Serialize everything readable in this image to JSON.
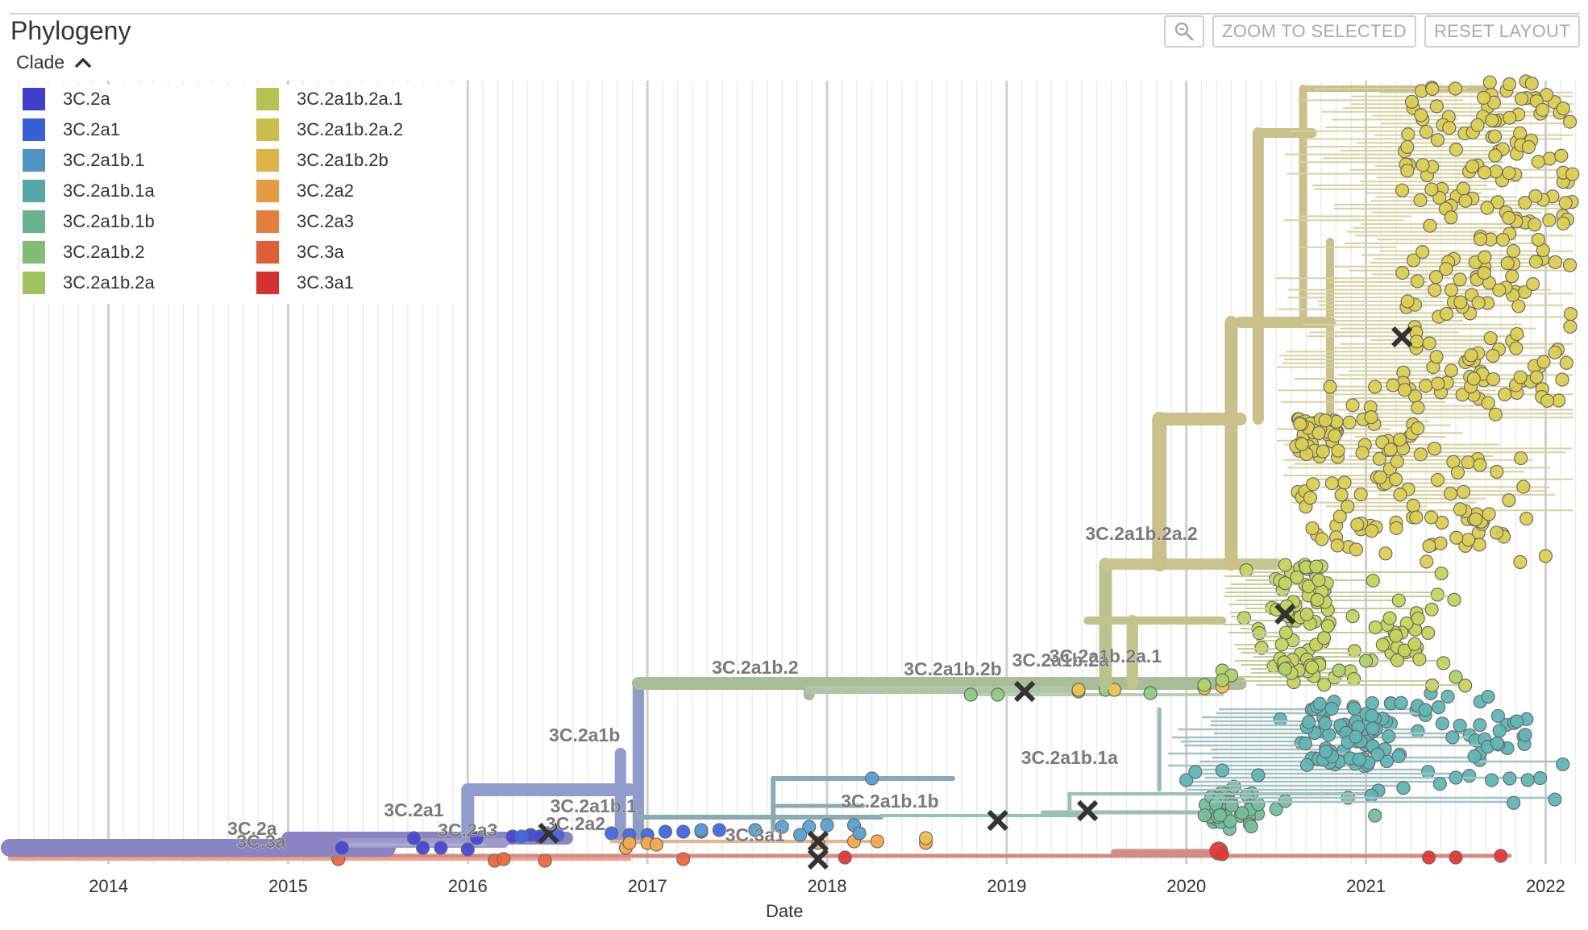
{
  "panel": {
    "title": "Phylogeny"
  },
  "toolbar": {
    "zoom_icon": "magnifier-icon",
    "zoom_to_selected": "ZOOM TO SELECTED",
    "reset_layout": "RESET LAYOUT"
  },
  "legend": {
    "toggle_label": "Clade",
    "toggle_icon": "chevron-up-icon",
    "items": [
      {
        "label": "3C.2a",
        "color": "#4444dd"
      },
      {
        "label": "3C.2a1",
        "color": "#3f66e6"
      },
      {
        "label": "3C.2a1b.1",
        "color": "#56a0d3"
      },
      {
        "label": "3C.2a1b.1a",
        "color": "#5fb6b6"
      },
      {
        "label": "3C.2a1b.1b",
        "color": "#72c19b"
      },
      {
        "label": "3C.2a1b.2",
        "color": "#8ccd7f"
      },
      {
        "label": "3C.2a1b.2a",
        "color": "#aed467"
      },
      {
        "label": "3C.2a1b.2a.1",
        "color": "#c6d459"
      },
      {
        "label": "3C.2a1b.2a.2",
        "color": "#dccf4f"
      },
      {
        "label": "3C.2a1b.2b",
        "color": "#f1c24a"
      },
      {
        "label": "3C.2a2",
        "color": "#f8a848"
      },
      {
        "label": "3C.2a3",
        "color": "#f58a40"
      },
      {
        "label": "3C.3a",
        "color": "#f1663a"
      },
      {
        "label": "3C.3a1",
        "color": "#e93532"
      }
    ]
  },
  "chart_data": {
    "type": "scatter",
    "title": "",
    "xlabel": "Date",
    "ylabel": "",
    "x_ticks": [
      "2014",
      "2015",
      "2016",
      "2017",
      "2018",
      "2019",
      "2020",
      "2021",
      "2022"
    ],
    "xlim": [
      2013.45,
      2022.2
    ],
    "grid": "vertical",
    "branch_labels": [
      {
        "label": "3C.2a",
        "x": 2014.8
      },
      {
        "label": "3C.3a",
        "x": 2014.85
      },
      {
        "label": "3C.2a1",
        "x": 2015.7
      },
      {
        "label": "3C.2a3",
        "x": 2016.0
      },
      {
        "label": "3C.2a2",
        "x": 2016.6
      },
      {
        "label": "3C.2a1b.1",
        "x": 2016.7
      },
      {
        "label": "3C.2a1b",
        "x": 2016.65
      },
      {
        "label": "3C.3a1",
        "x": 2017.6
      },
      {
        "label": "3C.2a1b.2",
        "x": 2017.6
      },
      {
        "label": "3C.2a1b.1b",
        "x": 2018.35
      },
      {
        "label": "3C.2a1b.2b",
        "x": 2018.7
      },
      {
        "label": "3C.2a1b.2a",
        "x": 2019.3
      },
      {
        "label": "3C.2a1b.2a.1",
        "x": 2019.55
      },
      {
        "label": "3C.2a1b.1a",
        "x": 2019.35
      },
      {
        "label": "3C.2a1b.2a.2",
        "x": 2019.75
      }
    ],
    "clade_branches": [
      {
        "clade": "3C.2a",
        "x_start": 2013.45,
        "x_end": 2016.55
      },
      {
        "clade": "3C.2a1",
        "x_start": 2015.5,
        "x_end": 2016.9
      },
      {
        "clade": "3C.2a1b",
        "x_start": 2016.0,
        "x_end": 2017.0
      },
      {
        "clade": "3C.2a1b.1",
        "x_start": 2016.7,
        "x_end": 2018.2
      },
      {
        "clade": "3C.2a1b.2",
        "x_start": 2016.95,
        "x_end": 2020.3
      },
      {
        "clade": "3C.2a1b.2a.2",
        "x_start": 2019.7,
        "x_end": 2022.15
      },
      {
        "clade": "3C.2a1b.1a",
        "x_start": 2017.7,
        "x_end": 2022.0
      },
      {
        "clade": "3C.2a1b.1b",
        "x_start": 2017.8,
        "x_end": 2020.6
      },
      {
        "clade": "3C.3a",
        "x_start": 2013.45,
        "x_end": 2021.8
      },
      {
        "clade": "3C.3a1",
        "x_start": 2017.55,
        "x_end": 2021.75
      }
    ],
    "mutation_markers_x": [
      2016.45,
      2017.95,
      2017.95,
      2019.1,
      2018.95,
      2019.45,
      2020.55,
      2021.2
    ]
  }
}
